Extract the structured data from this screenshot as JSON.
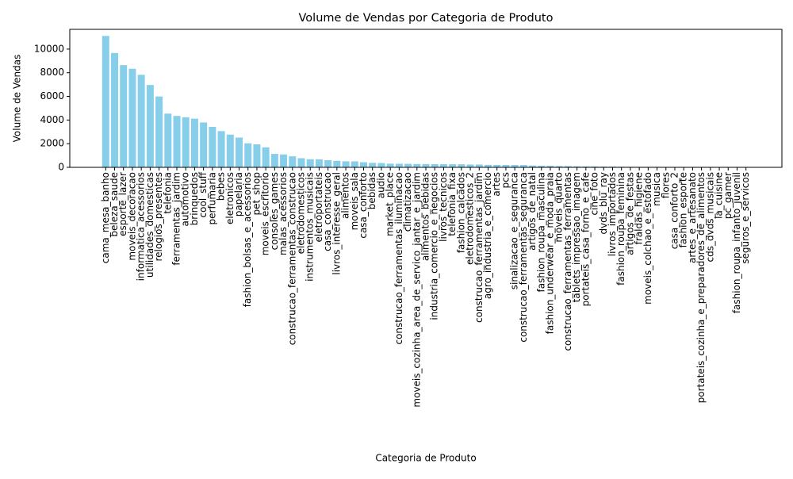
{
  "chart_data": {
    "type": "bar",
    "title": "Volume de Vendas por Categoria de Produto",
    "x_label": "Categoria de Produto",
    "y_label": "Volume de Vendas",
    "color": "#87ceeb",
    "categories": [
      "cama_mesa_banho",
      "beleza_saude",
      "esporte_lazer",
      "moveis_decoracao",
      "informatica_acessorios",
      "utilidades_domesticas",
      "relogios_presentes",
      "telefonia",
      "ferramentas_jardim",
      "automotivo",
      "brinquedos",
      "cool_stuff",
      "perfumaria",
      "bebes",
      "eletronicos",
      "papelaria",
      "fashion_bolsas_e_acessorios",
      "pet_shop",
      "moveis_escritorio",
      "consoles_games",
      "malas_acessorios",
      "construcao_ferramentas_construcao",
      "eletrodomesticos",
      "instrumentos_musicais",
      "eletroportateis",
      "casa_construcao",
      "livros_interesse_geral",
      "alimentos",
      "moveis_sala",
      "casa_conforto",
      "bebidas",
      "audio",
      "market_place",
      "construcao_ferramentas_iluminacao",
      "climatizacao",
      "moveis_cozinha_area_de_servico_jantar_e_jardim",
      "alimentos_bebidas",
      "industria_comercio_e_negocios",
      "livros_tecnicos",
      "telefonia_fixa",
      "fashion_calcados",
      "eletrodomesticos_2",
      "construcao_ferramentas_jardim",
      "agro_industria_e_comercio",
      "artes",
      "pcs",
      "sinalizacao_e_seguranca",
      "construcao_ferramentas_seguranca",
      "artigos_de_natal",
      "fashion_roupa_masculina",
      "fashion_underwear_e_moda_praia",
      "moveis_quarto",
      "construcao_ferramentas_ferramentas",
      "tablets_impressao_imagem",
      "portateis_casa_forno_e_cafe",
      "cine_foto",
      "dvds_blu_ray",
      "livros_importados",
      "fashion_roupa_feminina",
      "artigos_de_festas",
      "fraldas_higiene",
      "moveis_colchao_e_estofado",
      "musica",
      "flores",
      "casa_conforto_2",
      "fashion_esporte",
      "artes_e_artesanato",
      "portateis_cozinha_e_preparadores_de_alimentos",
      "cds_dvds_musicais",
      "la_cuisine",
      "pc_gamer",
      "fashion_roupa_infanto_juvenil",
      "seguros_e_servicos"
    ],
    "values": [
      11115,
      9670,
      8641,
      8334,
      7827,
      6964,
      5991,
      4545,
      4347,
      4235,
      4117,
      3796,
      3419,
      3065,
      2767,
      2517,
      2031,
      1947,
      1691,
      1137,
      1092,
      929,
      771,
      680,
      679,
      604,
      553,
      510,
      503,
      434,
      379,
      364,
      311,
      304,
      297,
      281,
      278,
      268,
      267,
      264,
      262,
      238,
      238,
      212,
      209,
      203,
      199,
      194,
      153,
      132,
      131,
      109,
      103,
      83,
      76,
      72,
      64,
      60,
      48,
      43,
      39,
      38,
      38,
      33,
      30,
      30,
      24,
      15,
      14,
      14,
      9,
      8,
      2
    ],
    "ylim": [
      0,
      11671
    ],
    "yticks": [
      0,
      2000,
      4000,
      6000,
      8000,
      10000
    ]
  }
}
